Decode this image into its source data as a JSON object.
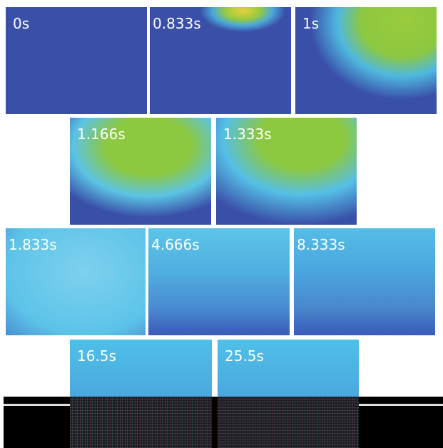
{
  "panels": [
    {
      "label": "0s"
    },
    {
      "label": "0.833s"
    },
    {
      "label": "1s"
    },
    {
      "label": "1.166s"
    },
    {
      "label": "1.333s"
    },
    {
      "label": "1.833s"
    },
    {
      "label": "4.666s"
    },
    {
      "label": "8.333s"
    },
    {
      "label": "16.5s"
    },
    {
      "label": "25.5s"
    }
  ]
}
